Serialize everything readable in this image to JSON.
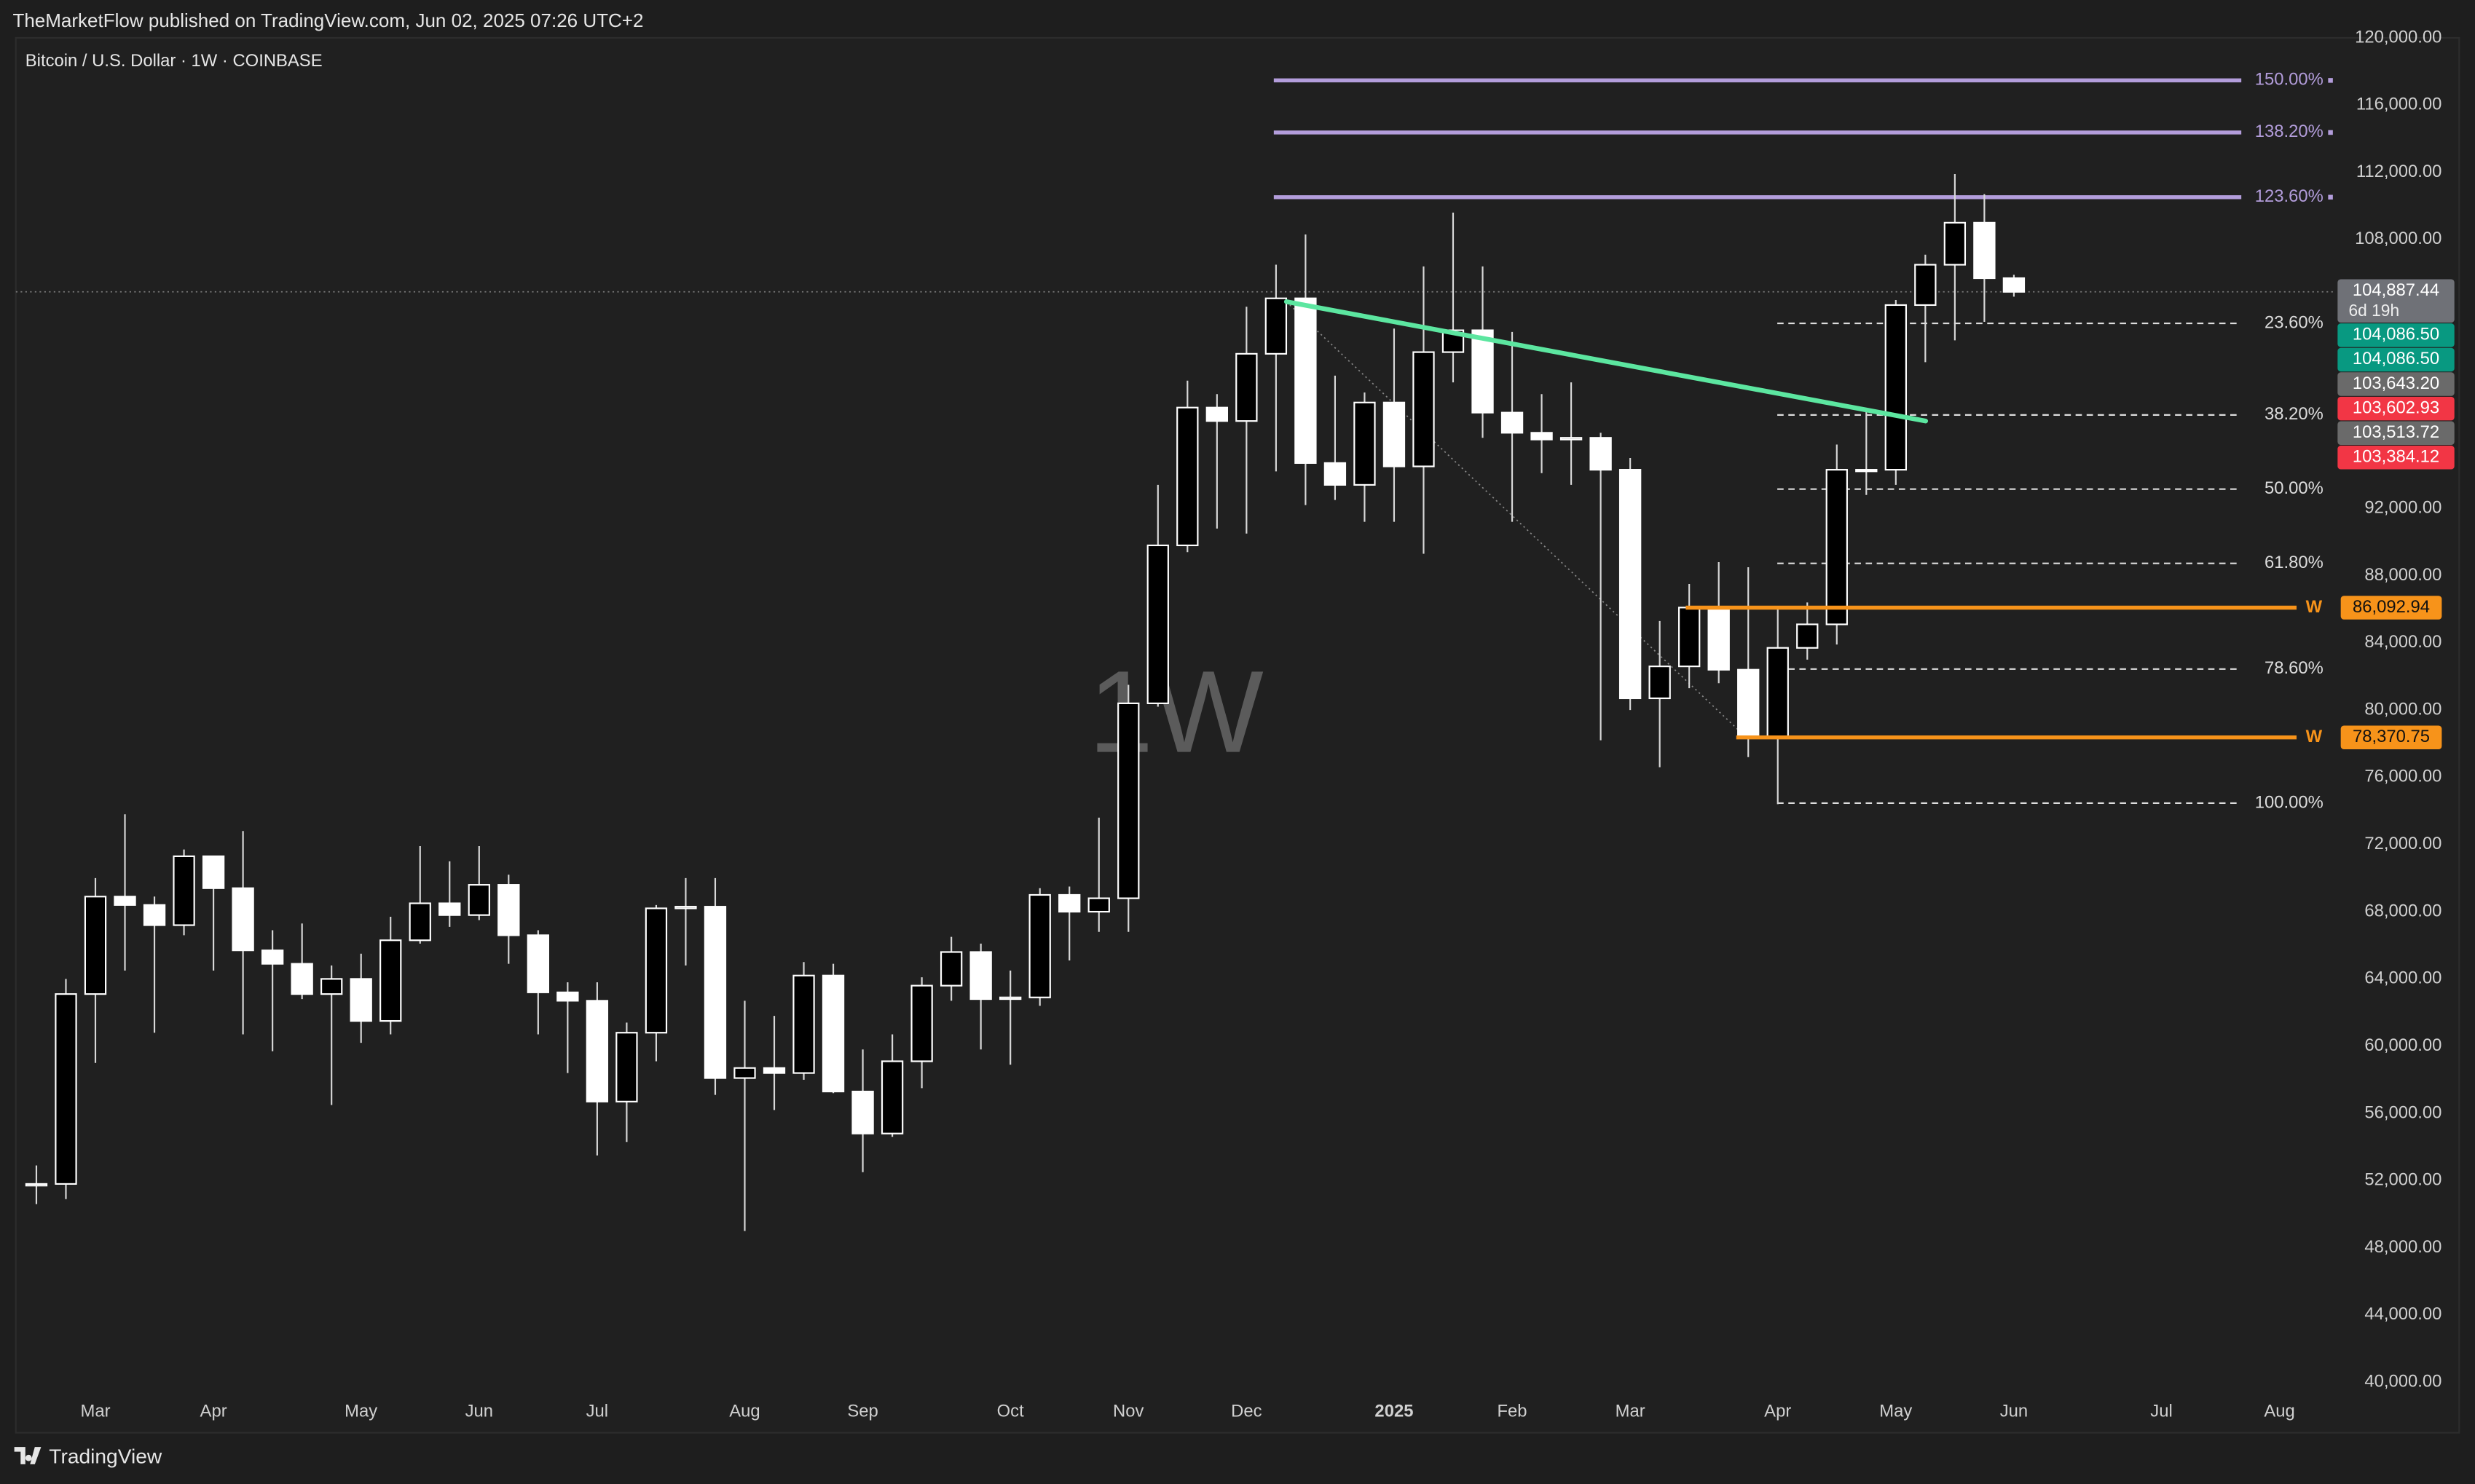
{
  "publisher_note": "TheMarketFlow published on TradingView.com, Jun 02, 2025 07:26 UTC+2",
  "watermark": "1W",
  "footer": "TradingView",
  "chart_data": {
    "type": "candlestick",
    "title": "Bitcoin / U.S. Dollar · 1W · COINBASE",
    "categories": [
      null,
      null,
      "Mar",
      null,
      null,
      null,
      "Apr",
      null,
      null,
      null,
      null,
      "May",
      null,
      null,
      null,
      "Jun",
      null,
      null,
      null,
      "Jul",
      null,
      null,
      null,
      null,
      "Aug",
      null,
      null,
      null,
      "Sep",
      null,
      null,
      null,
      null,
      "Oct",
      null,
      null,
      null,
      "Nov",
      null,
      null,
      null,
      "Dec",
      null,
      null,
      null,
      null,
      "2025",
      null,
      null,
      null,
      "Feb",
      null,
      null,
      null,
      "Mar",
      null,
      null,
      null,
      null,
      "Apr",
      null,
      null,
      null,
      "May",
      null,
      null,
      null,
      "Jun",
      null,
      null,
      null,
      null,
      "Jul",
      null,
      null,
      null,
      "Aug"
    ],
    "open": [
      51700,
      51800,
      63100,
      68900,
      68400,
      67200,
      71300,
      69400,
      65700,
      64900,
      63100,
      64000,
      61500,
      66300,
      68500,
      67800,
      69600,
      66600,
      63200,
      62700,
      56700,
      60800,
      68200,
      68300,
      58100,
      58700,
      58400,
      64200,
      57300,
      54800,
      59100,
      63600,
      65600,
      62800,
      62900,
      69000,
      68000,
      68800,
      80400,
      89800,
      98000,
      97200,
      101200,
      104500,
      94700,
      93400,
      98300,
      94500,
      101300,
      102600,
      97700,
      96500,
      96100,
      96200,
      94300,
      80700,
      82600,
      86100,
      82400,
      78400,
      83700,
      85100,
      94300,
      94300,
      104100,
      106500,
      109000,
      105700,
      null,
      null,
      null,
      null,
      null,
      null,
      null,
      null,
      null
    ],
    "high": [
      52900,
      64000,
      70000,
      73800,
      68900,
      71700,
      71300,
      72800,
      66900,
      67300,
      64800,
      65500,
      67700,
      71900,
      71000,
      71900,
      70200,
      66900,
      63800,
      63800,
      61400,
      68400,
      70000,
      70000,
      62700,
      61800,
      65000,
      64900,
      59800,
      60700,
      64100,
      66500,
      66100,
      64500,
      69400,
      69500,
      73600,
      81500,
      93400,
      99600,
      98800,
      104000,
      106500,
      108300,
      99900,
      98900,
      102700,
      106400,
      109600,
      106400,
      102500,
      98800,
      99500,
      96500,
      95000,
      85300,
      87500,
      88800,
      88500,
      86100,
      86400,
      95800,
      97900,
      104400,
      107100,
      111900,
      110700,
      105900,
      null,
      null,
      null,
      null,
      null,
      null,
      null,
      null,
      null
    ],
    "low": [
      50600,
      50900,
      59000,
      64500,
      60800,
      66600,
      64500,
      60700,
      59700,
      62800,
      56500,
      60200,
      60700,
      66100,
      67100,
      67500,
      64900,
      60700,
      58400,
      53500,
      54300,
      59100,
      64800,
      57100,
      49000,
      56200,
      58000,
      57200,
      52500,
      54600,
      57500,
      62700,
      59800,
      58900,
      62400,
      65100,
      66800,
      66800,
      80200,
      89400,
      90800,
      90500,
      94200,
      92200,
      92500,
      91200,
      91200,
      89300,
      99500,
      96200,
      91200,
      94100,
      93400,
      78200,
      80000,
      76600,
      81300,
      81600,
      77200,
      74400,
      83000,
      83900,
      92800,
      93400,
      100700,
      102000,
      103100,
      104600,
      null,
      null,
      null,
      null,
      null,
      null,
      null,
      null,
      null
    ],
    "close": [
      51800,
      63100,
      68900,
      68400,
      67200,
      71300,
      69400,
      65700,
      64900,
      63100,
      64000,
      61500,
      66300,
      68500,
      67800,
      69600,
      66600,
      63200,
      62700,
      56700,
      60800,
      68200,
      68300,
      58100,
      58700,
      58400,
      64200,
      57300,
      54800,
      59100,
      63600,
      65600,
      62800,
      62900,
      69000,
      68000,
      68800,
      80400,
      89800,
      98000,
      97200,
      101200,
      104500,
      94700,
      93400,
      98300,
      94500,
      101300,
      102600,
      97700,
      96500,
      96100,
      96200,
      94300,
      80700,
      82600,
      86100,
      82400,
      78400,
      83700,
      85100,
      94300,
      94300,
      104100,
      106500,
      109000,
      105700,
      104887.44,
      null,
      null,
      null,
      null,
      null,
      null,
      null,
      null,
      null
    ],
    "up_color": "#000000",
    "down_color": "#ffffff",
    "wick_color": "#d8d8d8",
    "ylim": [
      39625,
      120000
    ],
    "yticks": [
      {
        "value": 120000,
        "label": "120,000.00"
      },
      {
        "value": 116000,
        "label": "116,000.00"
      },
      {
        "value": 112000,
        "label": "112,000.00"
      },
      {
        "value": 108000,
        "label": "108,000.00"
      },
      {
        "value": 92000,
        "label": "92,000.00"
      },
      {
        "value": 88000,
        "label": "88,000.00"
      },
      {
        "value": 84000,
        "label": "84,000.00"
      },
      {
        "value": 80000,
        "label": "80,000.00"
      },
      {
        "value": 76000,
        "label": "76,000.00"
      },
      {
        "value": 72000,
        "label": "72,000.00"
      },
      {
        "value": 68000,
        "label": "68,000.00"
      },
      {
        "value": 64000,
        "label": "64,000.00"
      },
      {
        "value": 60000,
        "label": "60,000.00"
      },
      {
        "value": 56000,
        "label": "56,000.00"
      },
      {
        "value": 52000,
        "label": "52,000.00"
      },
      {
        "value": 48000,
        "label": "48,000.00"
      },
      {
        "value": 44000,
        "label": "44,000.00"
      },
      {
        "value": 40000,
        "label": "40,000.00"
      }
    ],
    "fib_extension": {
      "color": "#b39ddb",
      "levels": [
        {
          "price": 117470,
          "label": "150.00%"
        },
        {
          "price": 114370,
          "label": "138.20%"
        },
        {
          "price": 110520,
          "label": "123.60%"
        }
      ]
    },
    "fib_retracement": {
      "color": "#dddddd",
      "levels": [
        {
          "price": 103010,
          "label": "23.60%"
        },
        {
          "price": 97560,
          "label": "38.20%"
        },
        {
          "price": 93150,
          "label": "50.00%"
        },
        {
          "price": 88730,
          "label": "61.80%"
        },
        {
          "price": 82440,
          "label": "78.60%"
        },
        {
          "price": 74460,
          "label": "100.00%"
        }
      ]
    },
    "weekly_levels": [
      {
        "price": 86092.94,
        "label": "86,092.94",
        "tag": "W",
        "color": "#f7931a"
      },
      {
        "price": 78370.75,
        "label": "78,370.75",
        "tag": "W",
        "color": "#f7931a"
      }
    ],
    "trendline": {
      "color": "#5ce6a0",
      "from": 104300,
      "to": 97200
    },
    "price_tags": [
      {
        "value": 104887.44,
        "label": "104,887.44",
        "countdown": "6d 19h",
        "color": "#6f7177"
      },
      {
        "value": 104086.5,
        "label": "104,086.50",
        "color": "#089981"
      },
      {
        "value": 104086.5,
        "label": "104,086.50",
        "color": "#089981"
      },
      {
        "value": 103643.2,
        "label": "103,643.20",
        "color": "#6a6a6a"
      },
      {
        "value": 103602.93,
        "label": "103,602.93",
        "color": "#f23645"
      },
      {
        "value": 103513.72,
        "label": "103,513.72",
        "color": "#6a6a6a"
      },
      {
        "value": 103384.12,
        "label": "103,384.12",
        "color": "#f23645"
      }
    ]
  }
}
